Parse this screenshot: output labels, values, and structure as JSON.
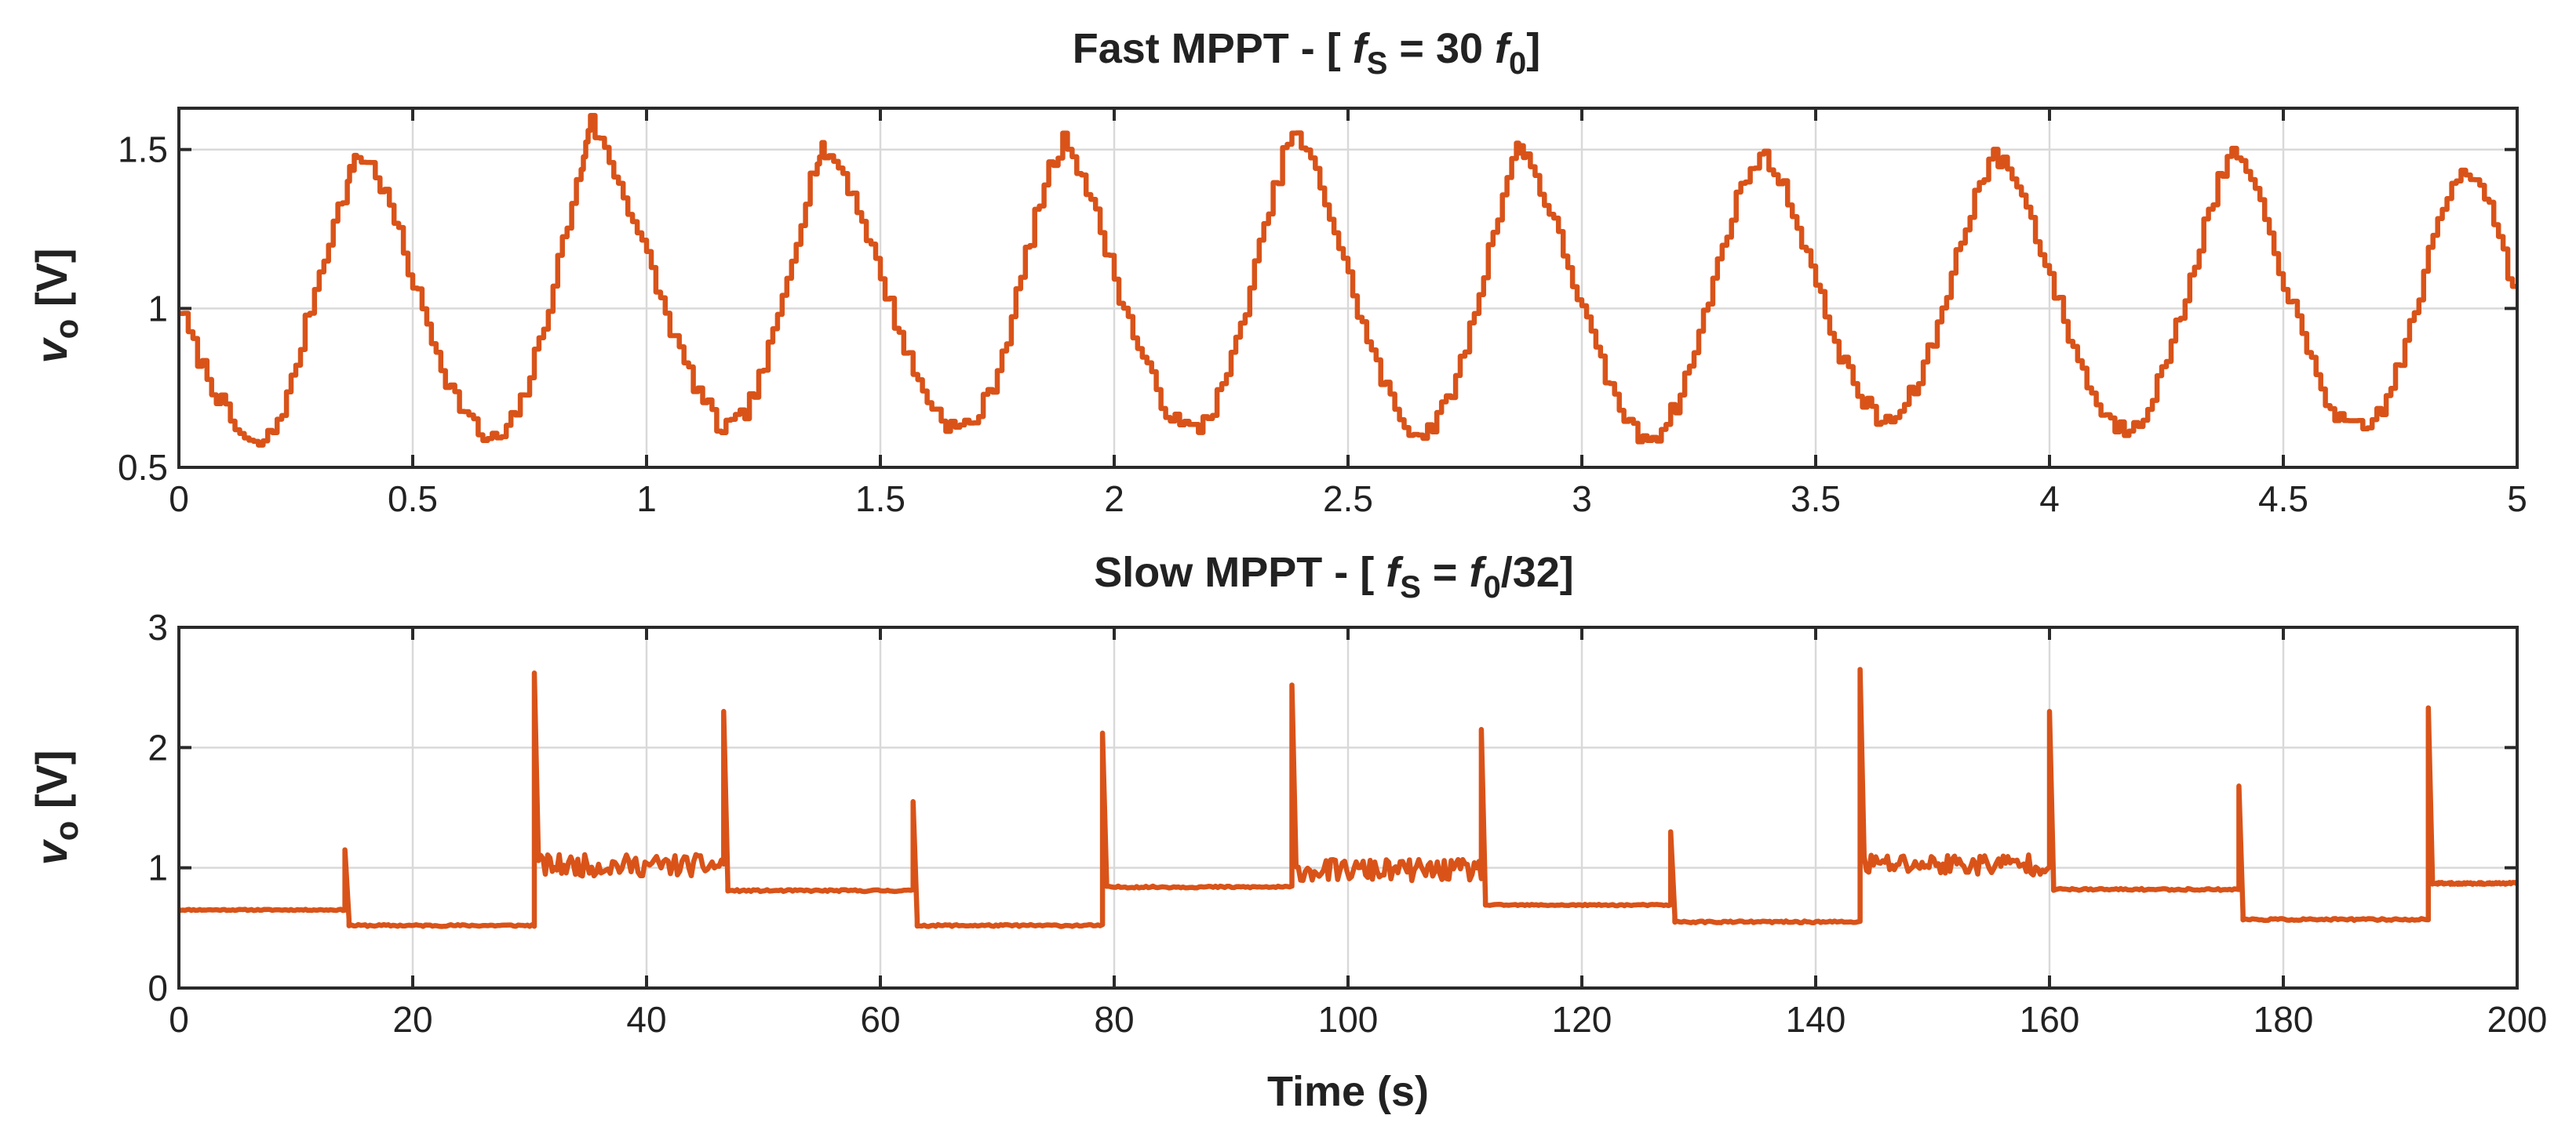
{
  "chart_data": [
    {
      "type": "line",
      "title": {
        "prefix": "Fast MPPT - [ ",
        "f": "f",
        "s": "S",
        "mid": " = 30 ",
        "f0": "f",
        "zero": "0",
        "suffix": "]"
      },
      "ylabel": {
        "v": "v",
        "sub": "o",
        "unit": " [V]"
      },
      "xlabel": "",
      "xlim": [
        0,
        5
      ],
      "ylim": [
        0.5,
        1.63
      ],
      "xticks": [
        0,
        0.5,
        1,
        1.5,
        2,
        2.5,
        3,
        3.5,
        4,
        4.5,
        5
      ],
      "xtick_labels": [
        "0",
        "0.5",
        "1",
        "1.5",
        "2",
        "2.5",
        "3",
        "3.5",
        "4",
        "4.5",
        "5"
      ],
      "yticks": [
        0.5,
        1,
        1.5
      ],
      "ytick_labels": [
        "0.5",
        "1",
        "1.5"
      ],
      "series": [
        {
          "name": "v_o",
          "color": "#D95319",
          "x": [
            0,
            0.04,
            0.08,
            0.12,
            0.16,
            0.2,
            0.24,
            0.28,
            0.32,
            0.36,
            0.38,
            0.42,
            0.46,
            0.5,
            0.54,
            0.58,
            0.62,
            0.66,
            0.7,
            0.74,
            0.78,
            0.82,
            0.86,
            0.88,
            0.92,
            0.96,
            1.0,
            1.04,
            1.08,
            1.12,
            1.16,
            1.2,
            1.24,
            1.28,
            1.32,
            1.36,
            1.38,
            1.42,
            1.46,
            1.5,
            1.54,
            1.58,
            1.62,
            1.66,
            1.7,
            1.74,
            1.78,
            1.82,
            1.86,
            1.9,
            1.94,
            1.98,
            2.02,
            2.06,
            2.1,
            2.14,
            2.18,
            2.22,
            2.26,
            2.3,
            2.34,
            2.38,
            2.42,
            2.46,
            2.5,
            2.54,
            2.58,
            2.62,
            2.66,
            2.7,
            2.74,
            2.78,
            2.82,
            2.86,
            2.88,
            2.92,
            2.96,
            3.0,
            3.04,
            3.08,
            3.12,
            3.16,
            3.2,
            3.24,
            3.28,
            3.32,
            3.36,
            3.4,
            3.44,
            3.48,
            3.52,
            3.56,
            3.6,
            3.64,
            3.68,
            3.72,
            3.76,
            3.8,
            3.84,
            3.88,
            3.92,
            3.96,
            4.0,
            4.04,
            4.08,
            4.12,
            4.16,
            4.2,
            4.24,
            4.28,
            4.32,
            4.36,
            4.4,
            4.44,
            4.48,
            4.52,
            4.56,
            4.6,
            4.64,
            4.68,
            4.72,
            4.76,
            4.8,
            4.84,
            4.88,
            4.92,
            4.96,
            5.0
          ],
          "y": [
            1.02,
            0.86,
            0.74,
            0.63,
            0.56,
            0.6,
            0.74,
            0.98,
            1.2,
            1.38,
            1.49,
            1.44,
            1.3,
            1.1,
            0.93,
            0.76,
            0.66,
            0.58,
            0.6,
            0.72,
            0.92,
            1.18,
            1.42,
            1.6,
            1.48,
            1.34,
            1.18,
            1.0,
            0.84,
            0.72,
            0.62,
            0.64,
            0.75,
            0.94,
            1.2,
            1.44,
            1.5,
            1.44,
            1.3,
            1.12,
            0.94,
            0.78,
            0.68,
            0.62,
            0.64,
            0.74,
            0.94,
            1.2,
            1.42,
            1.54,
            1.4,
            1.22,
            1.02,
            0.86,
            0.72,
            0.63,
            0.62,
            0.7,
            0.86,
            1.1,
            1.34,
            1.56,
            1.48,
            1.32,
            1.12,
            0.92,
            0.76,
            0.64,
            0.6,
            0.66,
            0.8,
            1.02,
            1.28,
            1.5,
            1.5,
            1.36,
            1.2,
            1.02,
            0.84,
            0.7,
            0.6,
            0.6,
            0.68,
            0.84,
            1.06,
            1.28,
            1.44,
            1.48,
            1.36,
            1.2,
            1.0,
            0.84,
            0.72,
            0.64,
            0.66,
            0.76,
            0.92,
            1.14,
            1.34,
            1.48,
            1.44,
            1.3,
            1.12,
            0.94,
            0.78,
            0.66,
            0.62,
            0.66,
            0.78,
            0.96,
            1.18,
            1.38,
            1.5,
            1.38,
            1.2,
            1.02,
            0.84,
            0.7,
            0.62,
            0.62,
            0.7,
            0.86,
            1.08,
            1.3,
            1.44,
            1.42,
            1.26,
            1.04
          ]
        }
      ]
    },
    {
      "type": "line",
      "title": {
        "prefix": "Slow MPPT - [ ",
        "f": "f",
        "s": "S",
        "mid": " =  ",
        "f0": "f",
        "zero": "0",
        "suffix": "/32]"
      },
      "ylabel": {
        "v": "v",
        "sub": "o",
        "unit": " [V]"
      },
      "xlabel": "Time (s)",
      "xlim": [
        0,
        200
      ],
      "ylim": [
        0,
        3
      ],
      "xticks": [
        0,
        20,
        40,
        60,
        80,
        100,
        120,
        140,
        160,
        180,
        200
      ],
      "xtick_labels": [
        "0",
        "20",
        "40",
        "60",
        "80",
        "100",
        "120",
        "140",
        "160",
        "180",
        "200"
      ],
      "yticks": [
        0,
        1,
        2,
        3
      ],
      "ytick_labels": [
        "0",
        "1",
        "2",
        "3"
      ],
      "series": [
        {
          "name": "v_o",
          "color": "#D95319",
          "segments": [
            {
              "x0": 0,
              "x1": 14.2,
              "level": 0.65,
              "jitter": 0.005
            },
            {
              "x0": 14.2,
              "x1": 30.4,
              "level": 0.52,
              "jitter": 0.008,
              "spike": 1.15
            },
            {
              "x0": 30.4,
              "x1": 46.6,
              "level": 1.02,
              "jitter": 0.09,
              "spike": 2.62
            },
            {
              "x0": 46.6,
              "x1": 62.8,
              "level": 0.81,
              "jitter": 0.008,
              "spike": 2.3
            },
            {
              "x0": 62.8,
              "x1": 79.0,
              "level": 0.52,
              "jitter": 0.008,
              "spike": 1.55
            },
            {
              "x0": 79.0,
              "x1": 95.2,
              "level": 0.84,
              "jitter": 0.008,
              "spike": 2.12
            },
            {
              "x0": 95.2,
              "x1": 111.4,
              "level": 0.98,
              "jitter": 0.09,
              "spike": 2.52
            },
            {
              "x0": 111.4,
              "x1": 127.6,
              "level": 0.69,
              "jitter": 0.006,
              "spike": 2.15
            },
            {
              "x0": 127.6,
              "x1": 143.8,
              "level": 0.55,
              "jitter": 0.008,
              "spike": 1.3
            },
            {
              "x0": 143.8,
              "x1": 160.0,
              "level": 1.03,
              "jitter": 0.09,
              "spike": 2.65
            },
            {
              "x0": 160.0,
              "x1": 176.2,
              "level": 0.82,
              "jitter": 0.008,
              "spike": 2.3
            },
            {
              "x0": 176.2,
              "x1": 192.4,
              "level": 0.57,
              "jitter": 0.008,
              "spike": 1.68
            },
            {
              "x0": 192.4,
              "x1": 200,
              "level": 0.87,
              "jitter": 0.008,
              "spike": 2.33
            }
          ]
        }
      ]
    }
  ]
}
